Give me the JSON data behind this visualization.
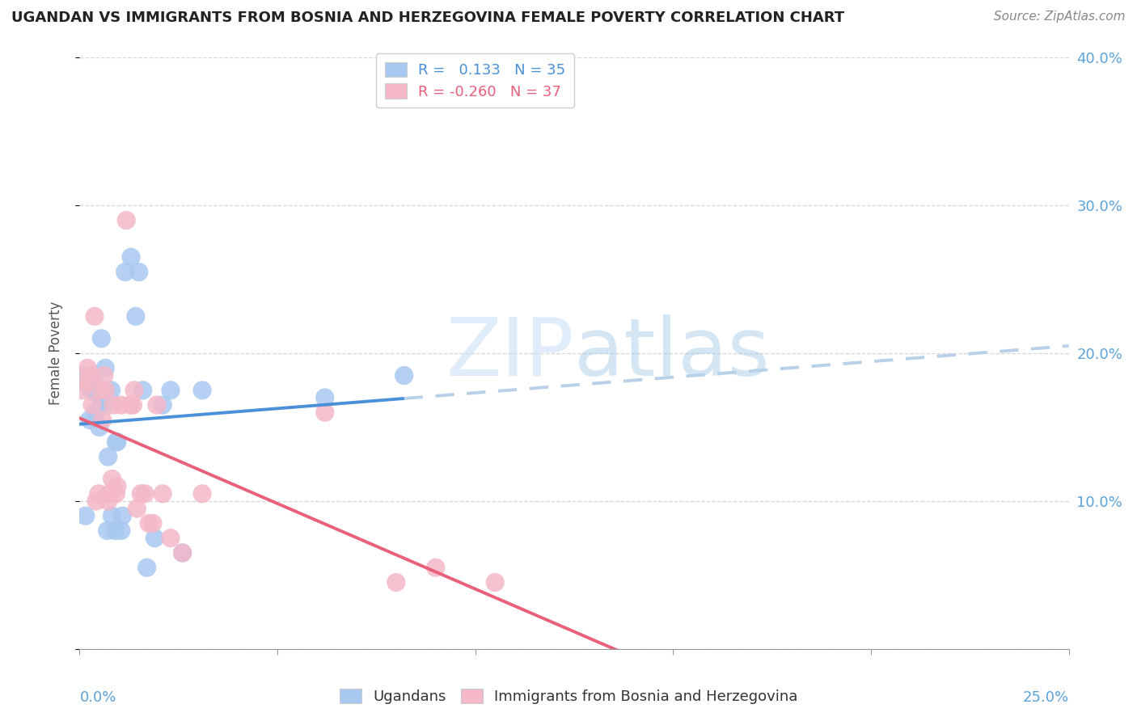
{
  "title": "UGANDAN VS IMMIGRANTS FROM BOSNIA AND HERZEGOVINA FEMALE POVERTY CORRELATION CHART",
  "source": "Source: ZipAtlas.com",
  "ylabel": "Female Poverty",
  "watermark_part1": "ZIP",
  "watermark_part2": "atlas",
  "blue_color": "#a8c8f0",
  "pink_color": "#f4b8c8",
  "line_blue": "#4a90d9",
  "line_pink": "#e8607a",
  "line_dashed_color": "#b8d0e8",
  "ugandan_x": [
    0.05,
    0.15,
    0.25,
    0.3,
    0.35,
    0.4,
    0.42,
    0.5,
    0.52,
    0.55,
    0.6,
    0.62,
    0.65,
    0.7,
    0.72,
    0.8,
    0.82,
    0.9,
    0.92,
    0.95,
    1.05,
    1.08,
    1.15,
    1.3,
    1.42,
    1.5,
    1.6,
    1.7,
    1.9,
    2.1,
    2.3,
    2.6,
    3.1,
    6.2,
    8.2
  ],
  "ugandan_y": [
    18.5,
    9.0,
    15.5,
    17.5,
    18.0,
    16.0,
    17.5,
    15.0,
    17.0,
    21.0,
    16.5,
    17.5,
    19.0,
    8.0,
    13.0,
    17.5,
    9.0,
    8.0,
    14.0,
    14.0,
    8.0,
    9.0,
    25.5,
    26.5,
    22.5,
    25.5,
    17.5,
    5.5,
    7.5,
    16.5,
    17.5,
    6.5,
    17.5,
    17.0,
    18.5
  ],
  "bosnian_x": [
    0.05,
    0.15,
    0.2,
    0.28,
    0.32,
    0.38,
    0.42,
    0.48,
    0.52,
    0.58,
    0.62,
    0.65,
    0.72,
    0.75,
    0.82,
    0.85,
    0.92,
    0.95,
    1.05,
    1.18,
    1.28,
    1.35,
    1.38,
    1.45,
    1.55,
    1.65,
    1.75,
    1.85,
    1.95,
    2.1,
    2.3,
    2.6,
    3.1,
    6.2,
    8.0,
    9.0,
    10.5
  ],
  "bosnian_y": [
    17.5,
    18.0,
    19.0,
    18.5,
    16.5,
    22.5,
    10.0,
    10.5,
    17.5,
    15.5,
    18.5,
    17.5,
    10.0,
    10.5,
    11.5,
    16.5,
    10.5,
    11.0,
    16.5,
    29.0,
    16.5,
    16.5,
    17.5,
    9.5,
    10.5,
    10.5,
    8.5,
    8.5,
    16.5,
    10.5,
    7.5,
    6.5,
    10.5,
    16.0,
    4.5,
    5.5,
    4.5
  ],
  "xlim": [
    0,
    25
  ],
  "ylim": [
    0,
    40
  ],
  "xtick_positions": [
    0,
    5,
    10,
    15,
    20,
    25
  ],
  "ytick_positions": [
    0,
    10,
    20,
    30,
    40
  ],
  "right_yticklabels": [
    "",
    "10.0%",
    "20.0%",
    "30.0%",
    "40.0%"
  ]
}
